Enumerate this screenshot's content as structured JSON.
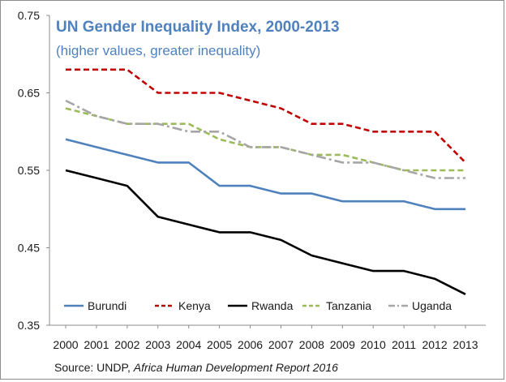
{
  "chart_data": {
    "type": "line",
    "title": "UN Gender Inequality Index, 2000-2013",
    "subtitle": "(higher values, greater inequality)",
    "xlabel": "",
    "ylabel": "",
    "x": [
      "2000",
      "2001",
      "2002",
      "2003",
      "2004",
      "2005",
      "2006",
      "2007",
      "2008",
      "2009",
      "2010",
      "2011",
      "2012",
      "2013"
    ],
    "ylim": [
      0.35,
      0.75
    ],
    "yticks": [
      "0.35",
      "0.45",
      "0.55",
      "0.65",
      "0.75"
    ],
    "grid": false,
    "legend_placement": "bottom",
    "series": [
      {
        "name": "Burundi",
        "color": "#4f81bd",
        "style": "solid",
        "values": [
          0.59,
          0.58,
          0.57,
          0.56,
          0.56,
          0.53,
          0.53,
          0.52,
          0.52,
          0.51,
          0.51,
          0.51,
          0.5,
          0.5
        ]
      },
      {
        "name": "Kenya",
        "color": "#c00000",
        "style": "dashed",
        "values": [
          0.68,
          0.68,
          0.68,
          0.65,
          0.65,
          0.65,
          0.64,
          0.63,
          0.61,
          0.61,
          0.6,
          0.6,
          0.6,
          0.56
        ]
      },
      {
        "name": "Rwanda",
        "color": "#000000",
        "style": "solid",
        "values": [
          0.55,
          0.54,
          0.53,
          0.49,
          0.48,
          0.47,
          0.47,
          0.46,
          0.44,
          0.43,
          0.42,
          0.42,
          0.41,
          0.39
        ]
      },
      {
        "name": "Tanzania",
        "color": "#9bbb59",
        "style": "dashed",
        "values": [
          0.63,
          0.62,
          0.61,
          0.61,
          0.61,
          0.59,
          0.58,
          0.58,
          0.57,
          0.57,
          0.56,
          0.55,
          0.55,
          0.55
        ]
      },
      {
        "name": "Uganda",
        "color": "#a6a6a6",
        "style": "dashdot",
        "values": [
          0.64,
          0.62,
          0.61,
          0.61,
          0.6,
          0.6,
          0.58,
          0.58,
          0.57,
          0.56,
          0.56,
          0.55,
          0.54,
          0.54
        ]
      }
    ],
    "source_prefix": "Source: UNDP, ",
    "source_italic": "Africa Human Development Report 2016"
  }
}
